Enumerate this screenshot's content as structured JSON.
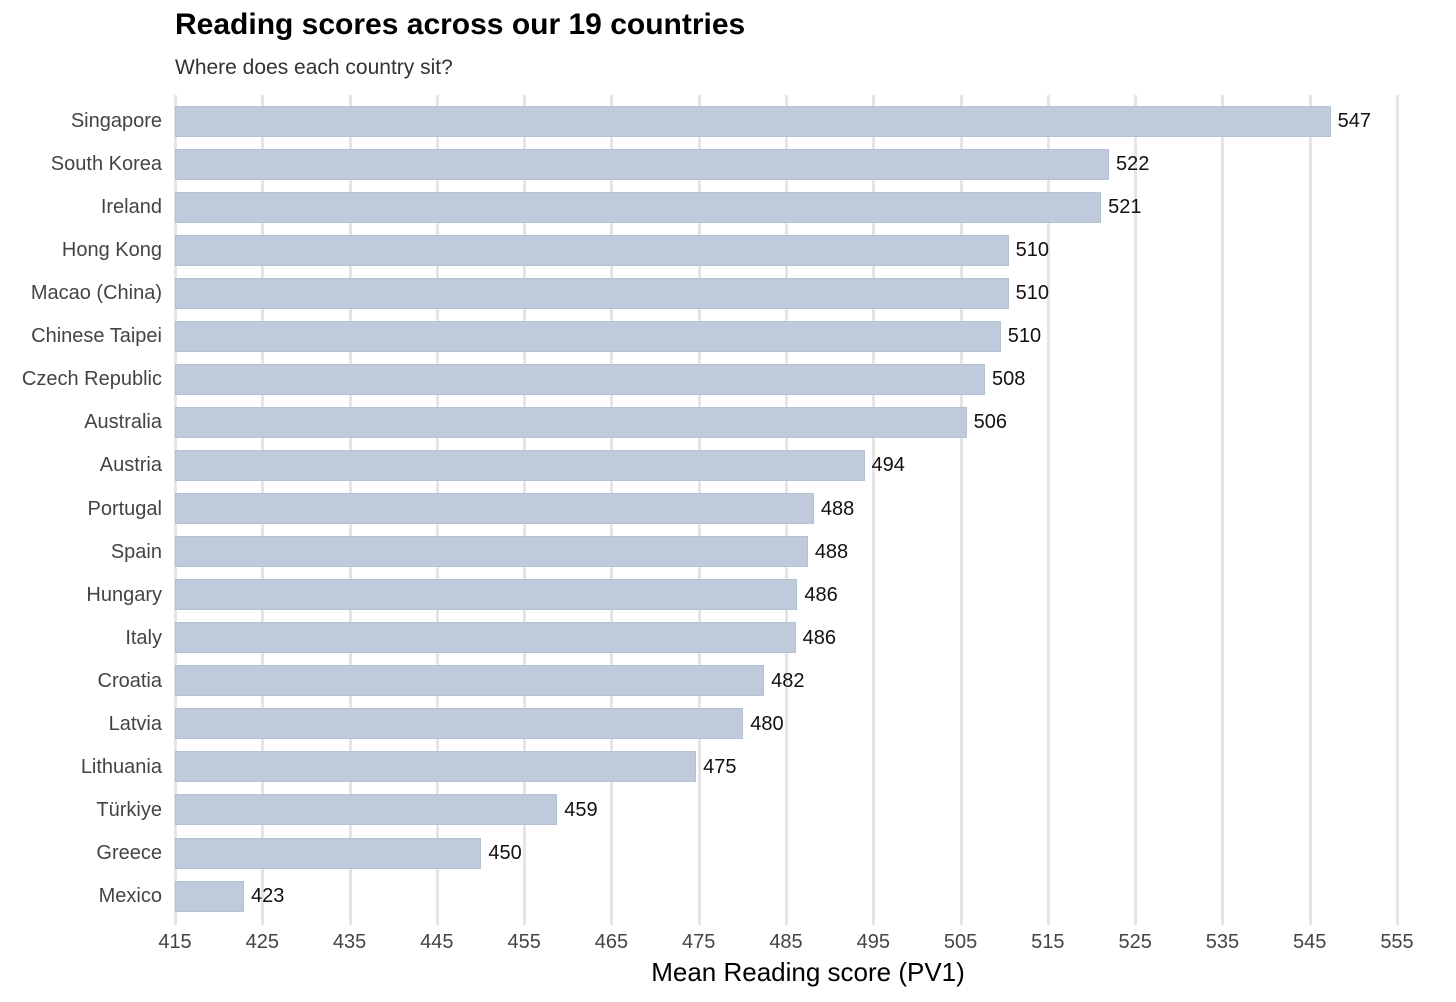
{
  "header": {
    "title": "Reading scores across our 19 countries",
    "subtitle": "Where does each country sit?"
  },
  "axis": {
    "xlabel": "Mean Reading score (PV1)",
    "xticks": [
      "415",
      "425",
      "435",
      "445",
      "455",
      "465",
      "475",
      "485",
      "495",
      "505",
      "515",
      "525",
      "535",
      "545",
      "555"
    ]
  },
  "colors": {
    "bar": "#bfcbda",
    "grid": "#e5e5e5"
  },
  "chart_data": {
    "type": "bar",
    "orientation": "horizontal",
    "title": "Reading scores across our 19 countries",
    "subtitle": "Where does each country sit?",
    "xlabel": "Mean Reading score (PV1)",
    "ylabel": "",
    "xlim": [
      415,
      555
    ],
    "xticks": [
      415,
      425,
      435,
      445,
      455,
      465,
      475,
      485,
      495,
      505,
      515,
      525,
      535,
      545,
      555
    ],
    "grid": "vertical major gridlines",
    "legend": "none",
    "categories": [
      "Singapore",
      "South Korea",
      "Ireland",
      "Hong Kong",
      "Macao (China)",
      "Chinese Taipei",
      "Czech Republic",
      "Australia",
      "Austria",
      "Portugal",
      "Spain",
      "Hungary",
      "Italy",
      "Croatia",
      "Latvia",
      "Lithuania",
      "Türkiye",
      "Greece",
      "Mexico"
    ],
    "values": [
      547.4,
      522.0,
      521.1,
      510.5,
      510.5,
      509.6,
      507.8,
      505.7,
      494.0,
      488.2,
      487.5,
      486.3,
      486.1,
      482.5,
      480.1,
      474.7,
      458.8,
      450.1,
      422.9
    ],
    "labels": [
      "547",
      "522",
      "521",
      "510",
      "510",
      "510",
      "508",
      "506",
      "494",
      "488",
      "488",
      "486",
      "486",
      "482",
      "480",
      "475",
      "459",
      "450",
      "423"
    ]
  }
}
